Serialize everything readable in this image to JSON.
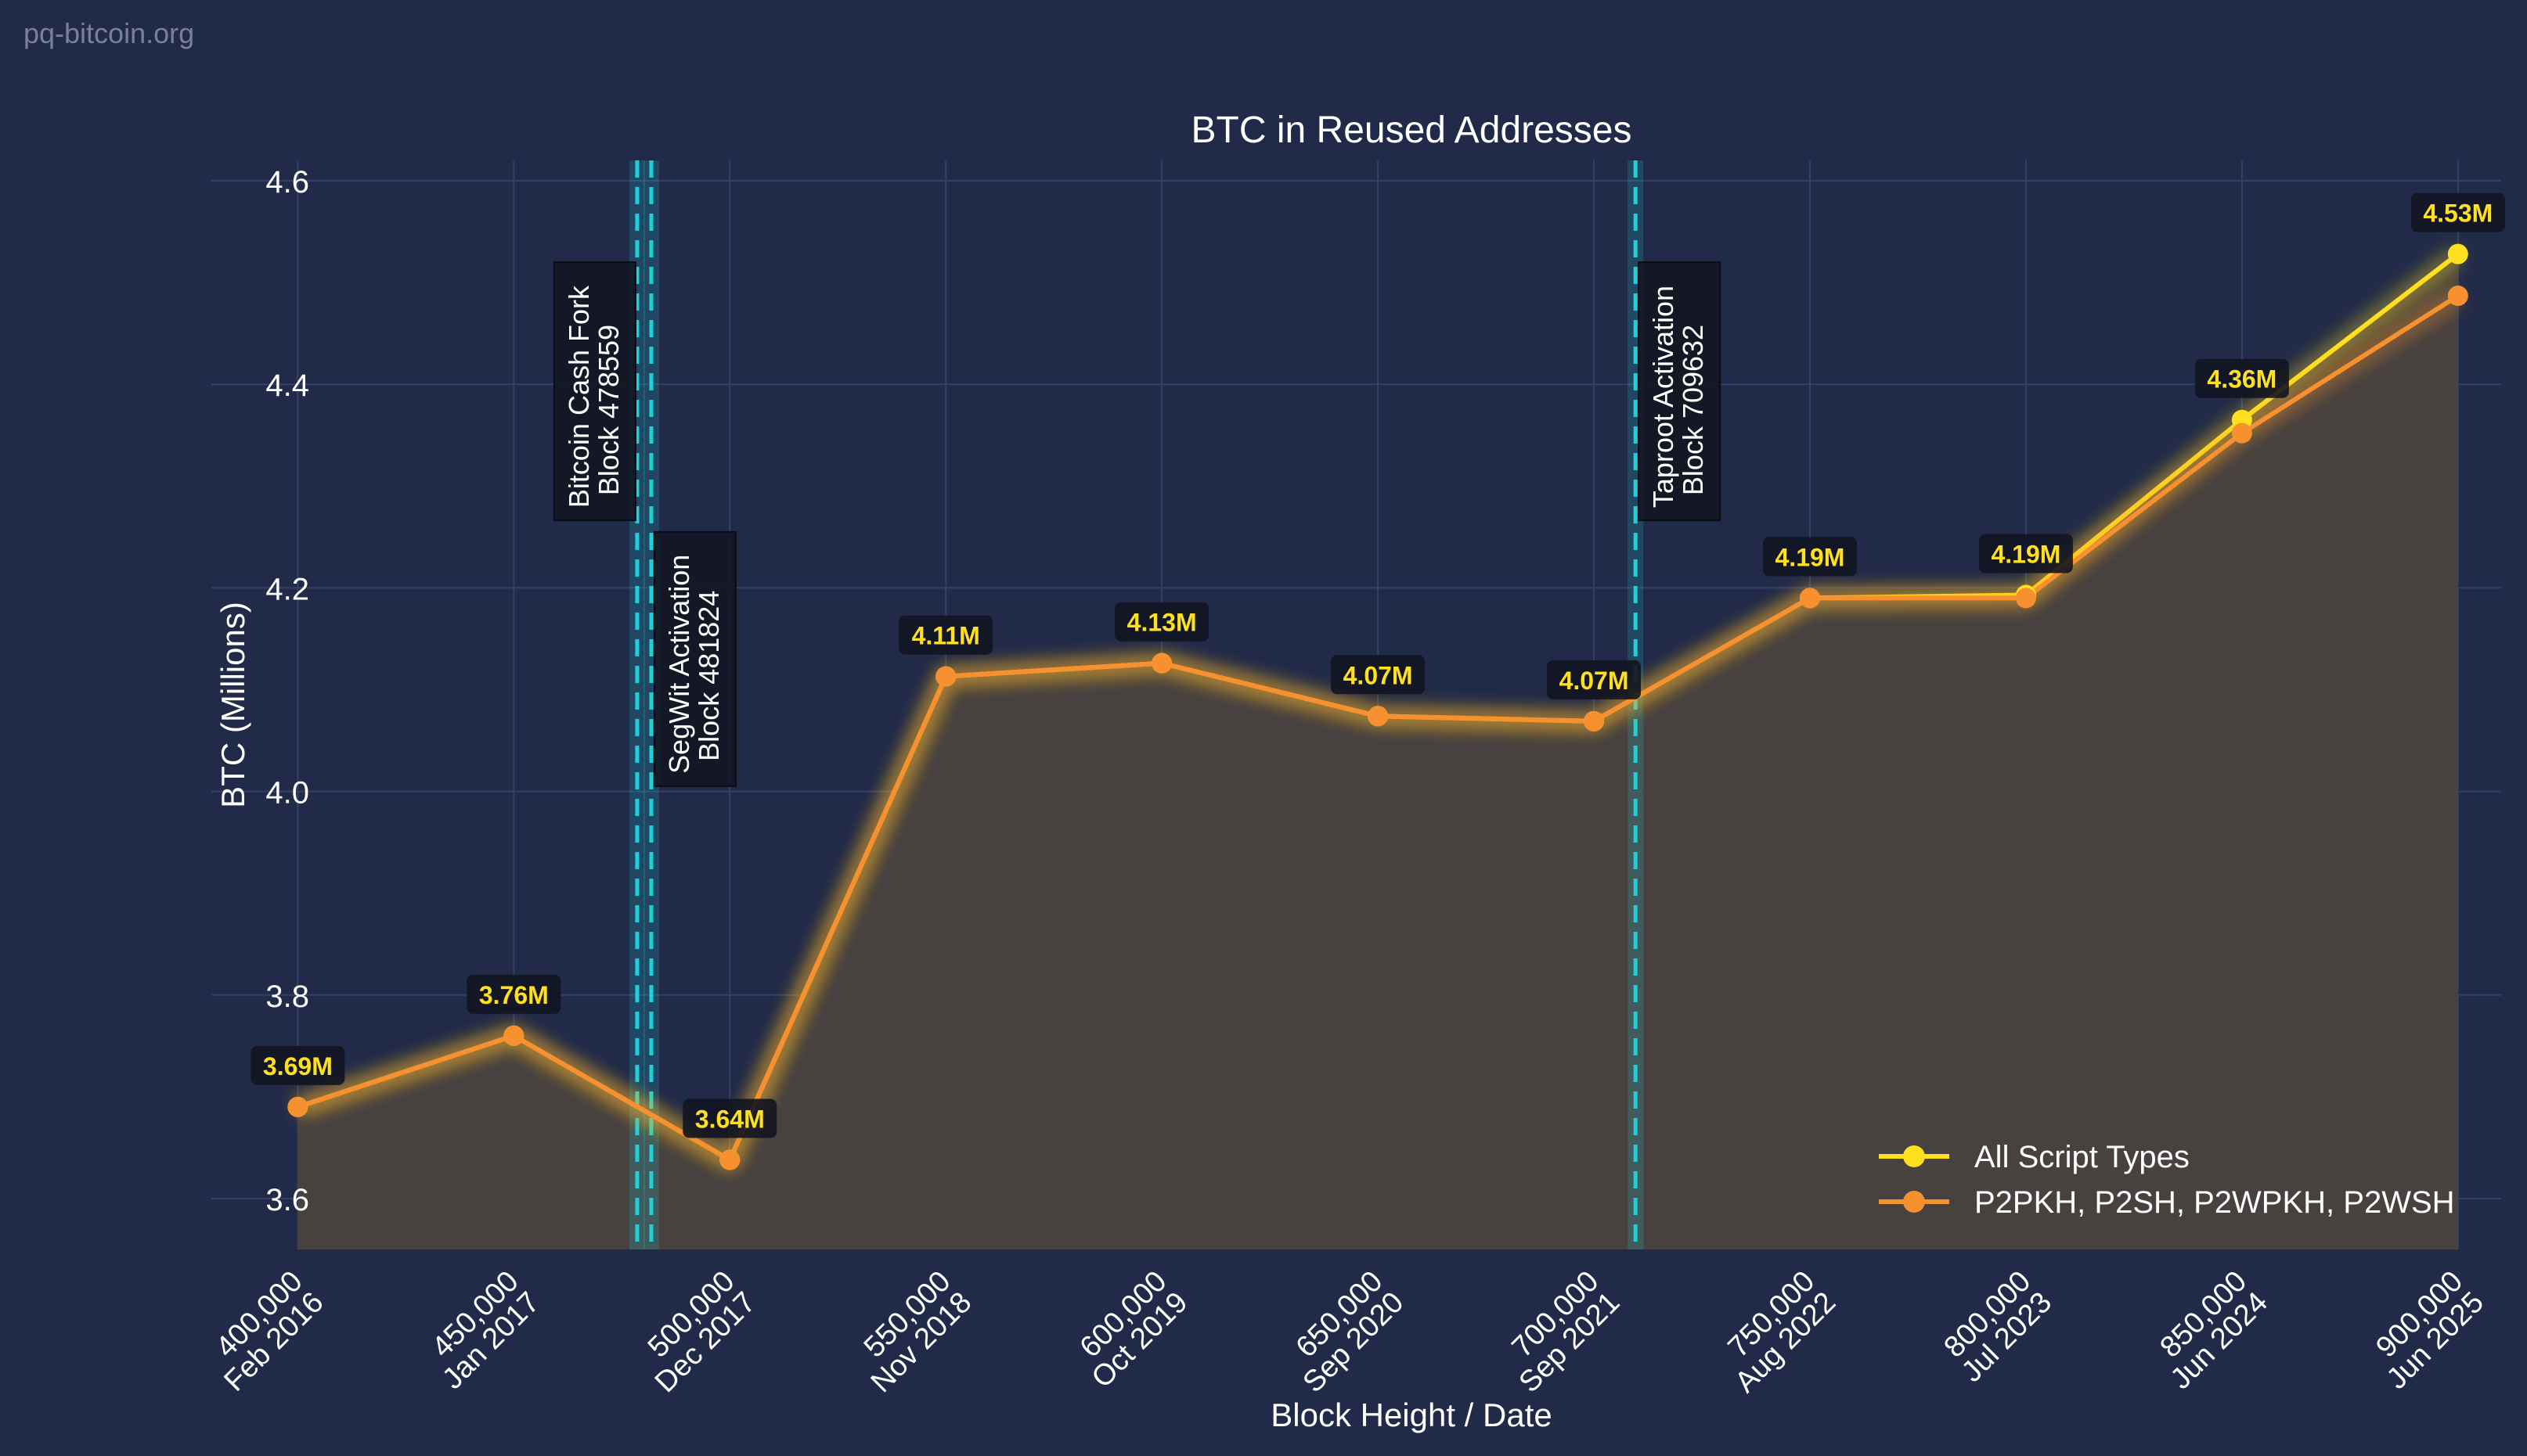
{
  "watermark": "pq-bitcoin.org",
  "colors": {
    "background": "#212a48",
    "grid": "#344068",
    "all_scripts": "#ffe01f",
    "subset": "#f7902f",
    "fill": "#4a4240",
    "event_line": "#1fd0d8",
    "label_bg": "#121420",
    "label_text": "#ffe01f",
    "text": "#ffffff"
  },
  "chart_data": {
    "type": "line",
    "title": "BTC in Reused Addresses",
    "xlabel": "Block Height / Date",
    "ylabel": "BTC (Millions)",
    "xlim": [
      380000,
      910000
    ],
    "ylim": [
      3.55,
      4.62
    ],
    "yticks": [
      3.6,
      3.8,
      4.0,
      4.2,
      4.4,
      4.6
    ],
    "yticklabels": [
      "3.6",
      "3.8",
      "4.0",
      "4.2",
      "4.4",
      "4.6"
    ],
    "xticks": [
      {
        "block": 400000,
        "label": "400,000",
        "date": "Feb 2016"
      },
      {
        "block": 450000,
        "label": "450,000",
        "date": "Jan 2017"
      },
      {
        "block": 500000,
        "label": "500,000",
        "date": "Dec 2017"
      },
      {
        "block": 550000,
        "label": "550,000",
        "date": "Nov 2018"
      },
      {
        "block": 600000,
        "label": "600,000",
        "date": "Oct 2019"
      },
      {
        "block": 650000,
        "label": "650,000",
        "date": "Sep 2020"
      },
      {
        "block": 700000,
        "label": "700,000",
        "date": "Sep 2021"
      },
      {
        "block": 750000,
        "label": "750,000",
        "date": "Aug 2022"
      },
      {
        "block": 800000,
        "label": "800,000",
        "date": "Jul 2023"
      },
      {
        "block": 850000,
        "label": "850,000",
        "date": "Jun 2024"
      },
      {
        "block": 900000,
        "label": "900,000",
        "date": "Jun 2025"
      }
    ],
    "x": [
      400000,
      450000,
      500000,
      550000,
      600000,
      650000,
      700000,
      750000,
      800000,
      850000,
      900000
    ],
    "series": [
      {
        "name": "All Script Types",
        "color": "#ffe01f",
        "values": [
          3.69,
          3.76,
          3.638,
          4.113,
          4.126,
          4.074,
          4.069,
          4.19,
          4.193,
          4.365,
          4.528
        ]
      },
      {
        "name": "P2PKH, P2SH, P2WPKH, P2WSH",
        "color": "#f7902f",
        "values": [
          3.69,
          3.76,
          3.638,
          4.113,
          4.126,
          4.074,
          4.069,
          4.19,
          4.19,
          4.352,
          4.487
        ]
      }
    ],
    "data_labels": [
      "3.69M",
      "3.76M",
      "3.64M",
      "4.11M",
      "4.13M",
      "4.07M",
      "4.07M",
      "4.19M",
      "4.19M",
      "4.36M",
      "4.53M"
    ],
    "events": [
      {
        "block": 478559,
        "line1": "Bitcoin Cash Fork",
        "line2": "Block 478559",
        "placement": "left",
        "top_value": 4.52
      },
      {
        "block": 481824,
        "line1": "SegWit Activation",
        "line2": "Block 481824",
        "placement": "right",
        "top_value": 4.255
      },
      {
        "block": 709632,
        "line1": "Taproot Activation",
        "line2": "Block 709632",
        "placement": "right",
        "top_value": 4.52
      }
    ],
    "legend": {
      "placement": "lower-right"
    },
    "grid": true
  }
}
